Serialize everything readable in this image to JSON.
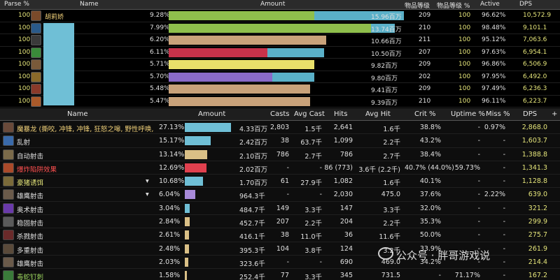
{
  "top": {
    "headers": [
      "Parse %",
      "Name",
      "Amount",
      "物品等级",
      "物品等级 %",
      "Active",
      "DPS"
    ],
    "player_name": "胡莉娇",
    "rows": [
      {
        "parse": "100",
        "pct": "9.28%",
        "amount": "15.96百万",
        "ilvl": "209",
        "ilvlpct": "100",
        "active": "96.62%",
        "dps": "10,572.9",
        "bar": 0.62,
        "bar2": 0.38,
        "c1": "#8fbf4c",
        "c2": "#5ab0c8",
        "iconc": "#7a4a2a"
      },
      {
        "parse": "100",
        "pct": "7.99%",
        "amount": "13.74百万",
        "ilvl": "210",
        "ilvlpct": "100",
        "active": "98.48%",
        "dps": "9,101.1",
        "bar": 0.86,
        "bar2": 0.1,
        "c1": "#8fbf4c",
        "c2": "#5ab0c8",
        "iconc": "#2a5a8a"
      },
      {
        "parse": "100",
        "pct": "6.20%",
        "amount": "10.66百万",
        "ilvl": "211",
        "ilvlpct": "100",
        "active": "95.12%",
        "dps": "7,063.6",
        "bar": 0.67,
        "bar2": 0,
        "c1": "#c9a27a",
        "c2": "#5ab0c8",
        "iconc": "#3a3a3a"
      },
      {
        "parse": "100",
        "pct": "6.11%",
        "amount": "10.50百万",
        "ilvl": "207",
        "ilvlpct": "100",
        "active": "97.63%",
        "dps": "6,954.1",
        "bar": 0.42,
        "bar2": 0.24,
        "c1": "#c8324a",
        "c2": "#5ab0c8",
        "iconc": "#3a8a3a"
      },
      {
        "parse": "100",
        "pct": "5.71%",
        "amount": "9.82百万",
        "ilvl": "209",
        "ilvlpct": "100",
        "active": "96.86%",
        "dps": "6,506.9",
        "bar": 0.62,
        "bar2": 0,
        "c1": "#e8e06a",
        "c2": "#5ab0c8",
        "iconc": "#7a5a3a"
      },
      {
        "parse": "100",
        "pct": "5.70%",
        "amount": "9.80百万",
        "ilvl": "202",
        "ilvlpct": "100",
        "active": "97.95%",
        "dps": "6,492.0",
        "bar": 0.44,
        "bar2": 0.18,
        "c1": "#8a6ac8",
        "c2": "#5ab0c8",
        "iconc": "#8a6a2a"
      },
      {
        "parse": "100",
        "pct": "5.48%",
        "amount": "9.41百万",
        "ilvl": "209",
        "ilvlpct": "100",
        "active": "97.49%",
        "dps": "6,236.3",
        "bar": 0.6,
        "bar2": 0,
        "c1": "#c9a27a",
        "c2": "#5ab0c8",
        "iconc": "#8a3a2a"
      },
      {
        "parse": "100",
        "pct": "5.47%",
        "amount": "9.39百万",
        "ilvl": "210",
        "ilvlpct": "100",
        "active": "96.11%",
        "dps": "6,223.7",
        "bar": 0.6,
        "bar2": 0,
        "c1": "#c9a27a",
        "c2": "#5ab0c8",
        "iconc": "#aa5a2a"
      }
    ]
  },
  "bottom": {
    "headers": [
      "Name",
      "Amount",
      "Casts",
      "Avg Cast",
      "Hits",
      "Avg Hit",
      "Crit %",
      "Uptime %",
      "Miss %",
      "DPS"
    ],
    "plus": "+",
    "rows": [
      {
        "name": "魔暴龙 (撕咬, 冲锋, 冲锋, 狂怒之嗥, 野性呼唤, M",
        "cls": "y",
        "pct": "27.13%",
        "amount": "4.33百万",
        "casts": "2,803",
        "avgcast": "1.5千",
        "hits": "2,641",
        "avghit": "1.6千",
        "crit": "38.8%",
        "uptime": "-",
        "miss": "0.97%",
        "dps": "2,868.0",
        "bar": 1.0,
        "c": "#6fbfd6",
        "iconc": "#6a4a3a",
        "caret": ""
      },
      {
        "name": "乱射",
        "cls": "w",
        "pct": "15.17%",
        "amount": "2.42百万",
        "casts": "38",
        "avgcast": "63.7千",
        "hits": "1,099",
        "avghit": "2.2千",
        "crit": "43.2%",
        "uptime": "-",
        "miss": "-",
        "dps": "1,603.7",
        "bar": 0.56,
        "c": "#6fbfd6",
        "iconc": "#3a6aaa",
        "caret": ""
      },
      {
        "name": "自动射击",
        "cls": "w",
        "pct": "13.14%",
        "amount": "2.10百万",
        "casts": "786",
        "avgcast": "2.7千",
        "hits": "786",
        "avghit": "2.7千",
        "crit": "38.4%",
        "uptime": "-",
        "miss": "-",
        "dps": "1,388.8",
        "bar": 0.48,
        "c": "#d9bf86",
        "iconc": "#7a6a4a",
        "caret": ""
      },
      {
        "name": "爆炸陷阱效果",
        "cls": "r",
        "pct": "12.69%",
        "amount": "2.02百万",
        "casts": "-",
        "avgcast": "-",
        "hits": "86 (773)",
        "avghit": "3.6千 (2.2千)",
        "crit": "40.7% (44.0%)",
        "uptime": "59.73%",
        "miss": "-",
        "dps": "1,341.3",
        "bar": 0.47,
        "c": "#e0404e",
        "iconc": "#aa4a2a",
        "caret": ""
      },
      {
        "name": "豪猪诱饵",
        "cls": "g",
        "pct": "10.68%",
        "amount": "1.70百万",
        "casts": "61",
        "avgcast": "27.9千",
        "hits": "1,082",
        "avghit": "1.6千",
        "crit": "40.1%",
        "uptime": "-",
        "miss": "-",
        "dps": "1,128.8",
        "bar": 0.4,
        "c": "#6fbfd6",
        "iconc": "#7a6a3a",
        "caret": "▾"
      },
      {
        "name": "雄鹰射击",
        "cls": "w",
        "pct": "6.04%",
        "amount": "964.3千",
        "casts": "-",
        "avgcast": "-",
        "hits": "2,030",
        "avghit": "475.0",
        "crit": "37.6%",
        "uptime": "-",
        "miss": "2.22%",
        "dps": "639.0",
        "bar": 0.22,
        "c": "#a88ad9",
        "iconc": "#6a5a4a",
        "caret": "▾"
      },
      {
        "name": "奥术射击",
        "cls": "w",
        "pct": "3.04%",
        "amount": "484.7千",
        "casts": "149",
        "avgcast": "3.3千",
        "hits": "147",
        "avghit": "3.3千",
        "crit": "32.0%",
        "uptime": "-",
        "miss": "-",
        "dps": "321.2",
        "bar": 0.11,
        "c": "#6fbfd6",
        "iconc": "#6a3aaa",
        "caret": ""
      },
      {
        "name": "稳固射击",
        "cls": "w",
        "pct": "2.84%",
        "amount": "452.7千",
        "casts": "207",
        "avgcast": "2.2千",
        "hits": "204",
        "avghit": "2.2千",
        "crit": "35.3%",
        "uptime": "-",
        "miss": "-",
        "dps": "299.9",
        "bar": 0.1,
        "c": "#d9bf86",
        "iconc": "#5a5a5a",
        "caret": ""
      },
      {
        "name": "杀戮射击",
        "cls": "w",
        "pct": "2.61%",
        "amount": "416.1千",
        "casts": "38",
        "avgcast": "11.0千",
        "hits": "36",
        "avghit": "11.6千",
        "crit": "50.0%",
        "uptime": "-",
        "miss": "-",
        "dps": "275.7",
        "bar": 0.09,
        "c": "#d9bf86",
        "iconc": "#6a2a2a",
        "caret": ""
      },
      {
        "name": "多重射击",
        "cls": "w",
        "pct": "2.48%",
        "amount": "395.3千",
        "casts": "104",
        "avgcast": "3.8千",
        "hits": "124",
        "avghit": "3.2千",
        "crit": "33.9%",
        "uptime": "-",
        "miss": "-",
        "dps": "261.9",
        "bar": 0.09,
        "c": "#d9bf86",
        "iconc": "#5a4a3a",
        "caret": ""
      },
      {
        "name": "雄鹰射击",
        "cls": "w",
        "pct": "2.03%",
        "amount": "323.6千",
        "casts": "-",
        "avgcast": "-",
        "hits": "690",
        "avghit": "469.0",
        "crit": "34.2%",
        "uptime": "-",
        "miss": "-",
        "dps": "214.4",
        "bar": 0.07,
        "c": "#d9bf86",
        "iconc": "#6a5a4a",
        "caret": ""
      },
      {
        "name": "毒蛇钉刺",
        "cls": "gr",
        "pct": "1.58%",
        "amount": "252.4千",
        "casts": "77",
        "avgcast": "3.3千",
        "hits": "345",
        "avghit": "731.5",
        "crit": "-",
        "uptime": "71.17%",
        "miss": "-",
        "dps": "167.2",
        "bar": 0.05,
        "c": "#d9bf86",
        "iconc": "#3a7a3a",
        "caret": ""
      }
    ]
  },
  "watermark": "公众号 · 胖哥游戏说"
}
